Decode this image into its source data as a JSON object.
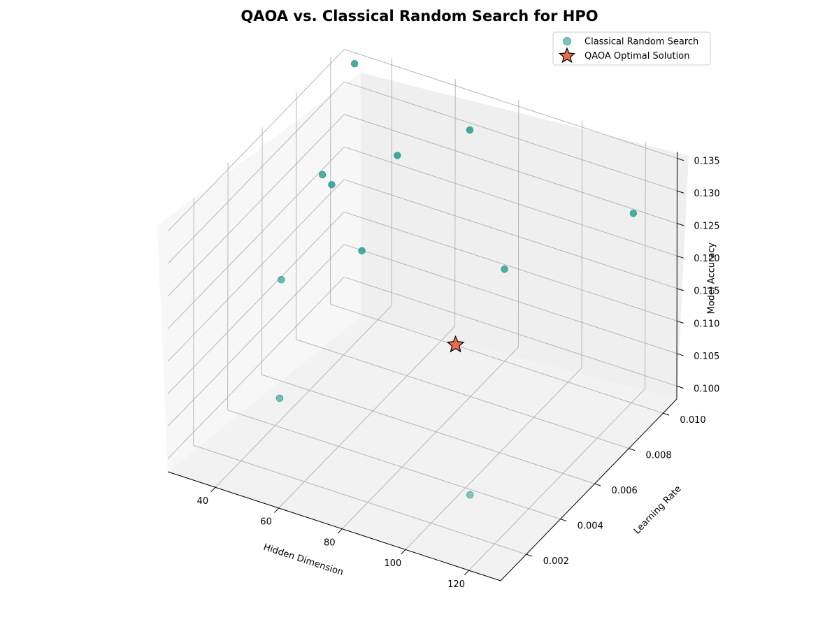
{
  "chart_data": {
    "type": "scatter",
    "title": "QAOA vs. Classical Random Search for HPO",
    "xlabel": "Hidden Dimension",
    "ylabel": "Learning Rate",
    "zlabel": "Model Accuracy",
    "x_ticks": [
      "40",
      "60",
      "80",
      "100",
      "120"
    ],
    "y_ticks": [
      "0.002",
      "0.004",
      "0.006",
      "0.008",
      "0.010"
    ],
    "z_ticks": [
      "0.100",
      "0.105",
      "0.110",
      "0.115",
      "0.120",
      "0.125",
      "0.130",
      "0.135"
    ],
    "xlim": [
      25,
      130
    ],
    "ylim": [
      0.0005,
      0.0108
    ],
    "zlim": [
      0.098,
      0.136
    ],
    "grid": true,
    "legend_position": "top-right",
    "series": [
      {
        "name": "Classical Random Search",
        "marker": "circle",
        "color": "#2a9d8f",
        "points": [
          {
            "x": 32,
            "y": 0.0101,
            "z": 0.1358
          },
          {
            "x": 70,
            "y": 0.0098,
            "z": 0.1325
          },
          {
            "x": 127,
            "y": 0.0088,
            "z": 0.1315
          },
          {
            "x": 45,
            "y": 0.0102,
            "z": 0.1235
          },
          {
            "x": 88,
            "y": 0.0085,
            "z": 0.1175
          },
          {
            "x": 30,
            "y": 0.0086,
            "z": 0.1225
          },
          {
            "x": 27,
            "y": 0.0097,
            "z": 0.1175
          },
          {
            "x": 37,
            "y": 0.0049,
            "z": 0.1175
          },
          {
            "x": 36,
            "y": 0.0098,
            "z": 0.1085
          },
          {
            "x": 43,
            "y": 0.0037,
            "z": 0.1035
          },
          {
            "x": 116,
            "y": 0.0013,
            "z": 0.1068
          }
        ]
      },
      {
        "name": "QAOA Optimal Solution",
        "marker": "star",
        "color": "#e76f51",
        "points": [
          {
            "x": 78,
            "y": 0.0075,
            "z": 0.107
          }
        ]
      }
    ]
  }
}
